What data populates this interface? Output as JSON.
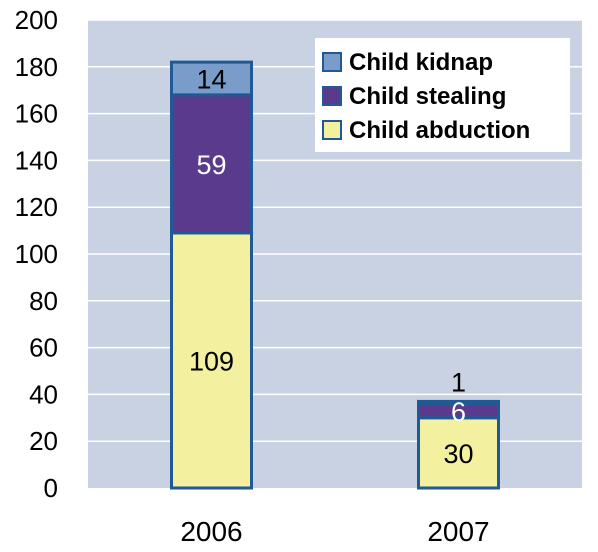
{
  "chart_data": {
    "type": "bar",
    "stacked": true,
    "categories": [
      "2006",
      "2007"
    ],
    "series": [
      {
        "name": "Child abduction",
        "values": [
          109,
          30
        ],
        "color": "#F3F0A0",
        "label_color": "#000000"
      },
      {
        "name": "Child stealing",
        "values": [
          59,
          6
        ],
        "color": "#5A3A8C",
        "label_color": "#ffffff"
      },
      {
        "name": "Child kidnap",
        "values": [
          14,
          1
        ],
        "color": "#7A9CCB",
        "label_color": "#000000"
      }
    ],
    "title": "",
    "xlabel": "",
    "ylabel": "",
    "ylim": [
      0,
      200
    ],
    "yticks": [
      0,
      20,
      40,
      60,
      80,
      100,
      120,
      140,
      160,
      180,
      200
    ],
    "grid": true,
    "legend_position": "top-right",
    "legend_order": [
      "Child kidnap",
      "Child stealing",
      "Child abduction"
    ],
    "plot_background": "#C8D2E2",
    "bar_border_color": "#1F5A96",
    "gridline_color": "#ffffff"
  }
}
